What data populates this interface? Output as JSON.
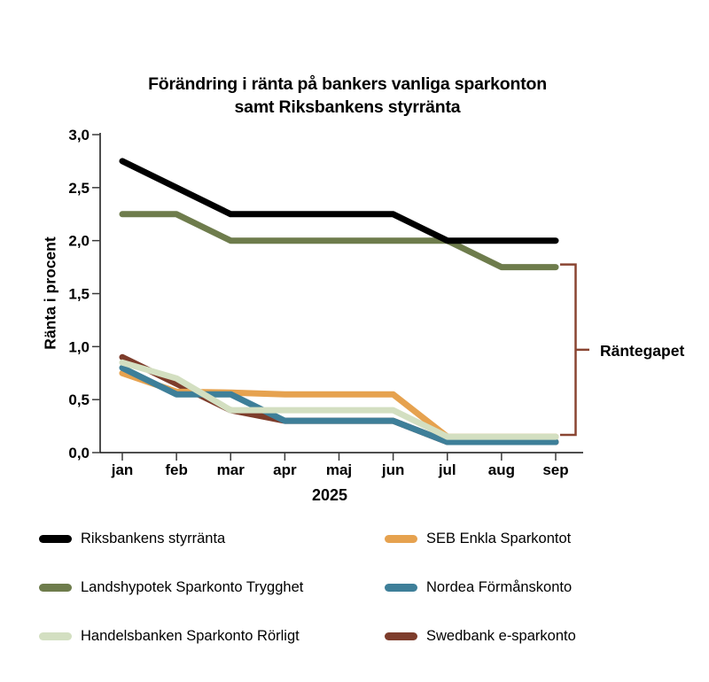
{
  "chart_data": {
    "type": "line",
    "title_lines": [
      "Förändring i ränta på bankers vanliga sparkonton",
      "samt Riksbankens styrränta"
    ],
    "xlabel": "2025",
    "ylabel": "Ränta i procent",
    "categories": [
      "jan",
      "feb",
      "mar",
      "apr",
      "maj",
      "jun",
      "jul",
      "aug",
      "sep"
    ],
    "ylim": [
      0,
      3
    ],
    "ytick_values": [
      0,
      0.5,
      1,
      1.5,
      2,
      2.5,
      3
    ],
    "ytick_labels": [
      "0,0",
      "0,5",
      "1,0",
      "1,5",
      "2,0",
      "2,5",
      "3,0"
    ],
    "grid": false,
    "legend_position": "bottom",
    "series": [
      {
        "name": "Riksbankens styrränta",
        "color": "#000000",
        "values": [
          2.75,
          2.5,
          2.25,
          2.25,
          2.25,
          2.25,
          2.0,
          2.0,
          2.0
        ]
      },
      {
        "name": "Landshypotek Sparkonto Trygghet",
        "color": "#6e7c4c",
        "values": [
          2.25,
          2.25,
          2.0,
          2.0,
          2.0,
          2.0,
          2.0,
          1.75,
          1.75
        ]
      },
      {
        "name": "Handelsbanken Sparkonto Rörligt",
        "color": "#d3dfc1",
        "values": [
          0.85,
          0.7,
          0.4,
          0.4,
          0.4,
          0.4,
          0.15,
          0.15,
          0.15
        ]
      },
      {
        "name": "SEB Enkla Sparkontot",
        "color": "#e6a24f",
        "values": [
          0.75,
          0.55,
          0.55,
          0.55,
          0.55,
          0.55,
          0.15,
          0.15,
          0.15
        ]
      },
      {
        "name": "Nordea Förmånskonto",
        "color": "#3e7f99",
        "values": [
          0.8,
          0.55,
          0.55,
          0.3,
          0.3,
          0.3,
          0.1,
          0.1,
          0.1
        ]
      },
      {
        "name": "Swedbank e-sparkonto",
        "color": "#7d3c2b",
        "values": [
          0.9,
          0.65,
          0.4,
          0.3,
          0.3,
          0.3,
          0.1,
          0.1,
          0.1
        ]
      }
    ],
    "annotation": {
      "label": "Räntegapet",
      "color": "#8a4532",
      "from_value": 1.75,
      "to_value": 0.15
    }
  }
}
